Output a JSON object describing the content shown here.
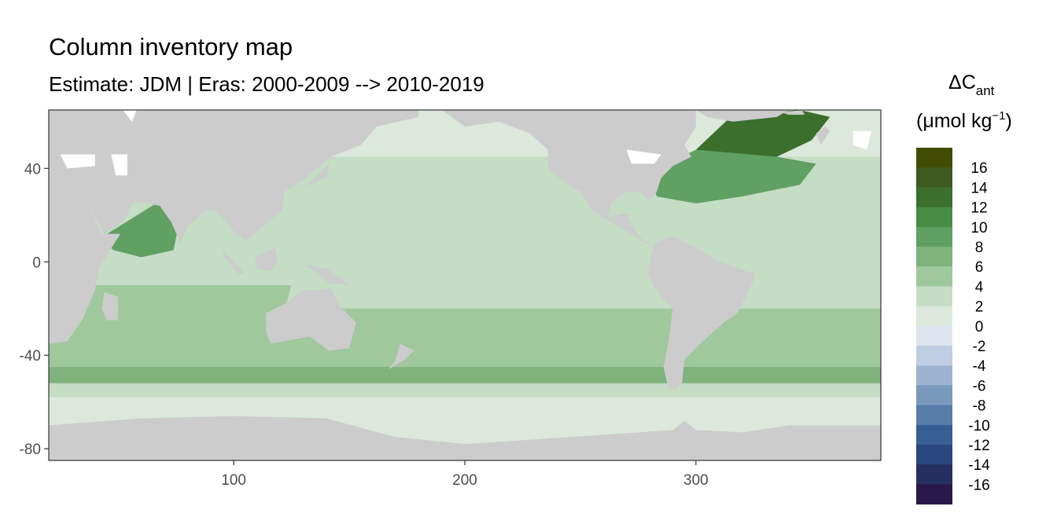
{
  "chart_data": {
    "type": "heatmap",
    "title": "Column inventory map",
    "subtitle": "Estimate: JDM  | Eras: 2000-2009 --> 2010-2019",
    "xlabel": "",
    "ylabel": "",
    "xlim": [
      20,
      380
    ],
    "ylim": [
      -85,
      65
    ],
    "x_ticks": [
      100,
      200,
      300
    ],
    "y_ticks": [
      40,
      0,
      -40,
      -80
    ],
    "grid": false,
    "land_color": "#cccccc",
    "legend": {
      "title_main": "ΔC",
      "title_sub": "ant",
      "unit_prefix": "(μmol kg",
      "unit_sup": "−1",
      "unit_suffix": ")",
      "placement": "right",
      "labels": [
        "16",
        "14",
        "12",
        "10",
        "8",
        "6",
        "4",
        "2",
        "0",
        "-2",
        "-4",
        "-6",
        "-8",
        "-10",
        "-12",
        "-14",
        "-16"
      ],
      "colors": [
        "#424c04",
        "#3f5a20",
        "#3a6f2c",
        "#478c45",
        "#60a063",
        "#7fb27c",
        "#9fc89c",
        "#c4ddc4",
        "#dbe8db",
        "#dde4ee",
        "#bfcee2",
        "#9db3d0",
        "#7b98bd",
        "#577daa",
        "#385f94",
        "#2a4680",
        "#253061",
        "#28194a"
      ]
    },
    "zonal_bands": [
      {
        "lat_min": 45,
        "lat_max": 65,
        "value": 2
      },
      {
        "lat_min": 20,
        "lat_max": 45,
        "value": 3
      },
      {
        "lat_min": -20,
        "lat_max": 20,
        "value": 4
      },
      {
        "lat_min": -35,
        "lat_max": -20,
        "value": 5
      },
      {
        "lat_min": -45,
        "lat_max": -35,
        "value": 6
      },
      {
        "lat_min": -52,
        "lat_max": -45,
        "value": 7
      },
      {
        "lat_min": -58,
        "lat_max": -52,
        "value": 3
      },
      {
        "lat_min": -85,
        "lat_max": -58,
        "value": 1
      }
    ],
    "regional_values": [
      {
        "region": "North Atlantic subpolar",
        "value": 13
      },
      {
        "region": "North Atlantic subtropical",
        "value": 9
      },
      {
        "region": "Arabian Sea",
        "value": 9
      },
      {
        "region": "Indian Ocean",
        "value": 6
      },
      {
        "region": "South Atlantic",
        "value": 5
      }
    ]
  }
}
